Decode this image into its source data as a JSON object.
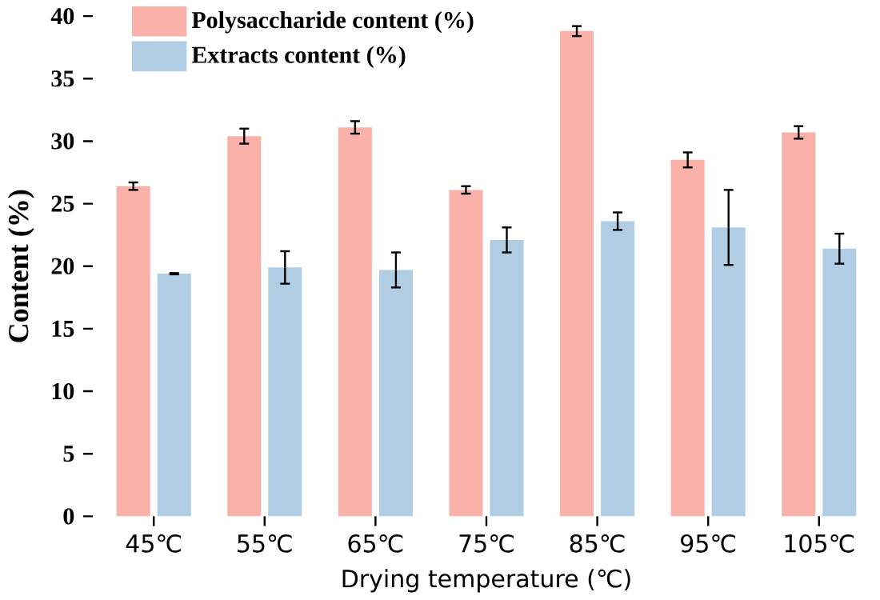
{
  "chart_data": {
    "type": "bar",
    "xlabel": "Drying temperature (℃)",
    "ylabel": "Content (%)",
    "categories": [
      "45℃",
      "55℃",
      "65℃",
      "75℃",
      "85℃",
      "95℃",
      "105℃"
    ],
    "series": [
      {
        "name": "Polysaccharide content (%)",
        "color": "#f9b1aa",
        "values": [
          26.4,
          30.4,
          31.1,
          26.1,
          38.8,
          28.5,
          30.7
        ],
        "errors": [
          0.3,
          0.6,
          0.5,
          0.3,
          0.4,
          0.6,
          0.5
        ]
      },
      {
        "name": "Extracts content (%)",
        "color": "#b1cde4",
        "values": [
          19.4,
          19.9,
          19.7,
          22.1,
          23.6,
          23.1,
          21.4
        ],
        "errors": [
          0.05,
          1.3,
          1.4,
          1.0,
          0.7,
          3.0,
          1.2
        ]
      }
    ],
    "ylim": [
      0,
      40
    ],
    "yticks": [
      0,
      5,
      10,
      15,
      20,
      25,
      30,
      35,
      40
    ],
    "grid": false,
    "legend": "top"
  }
}
